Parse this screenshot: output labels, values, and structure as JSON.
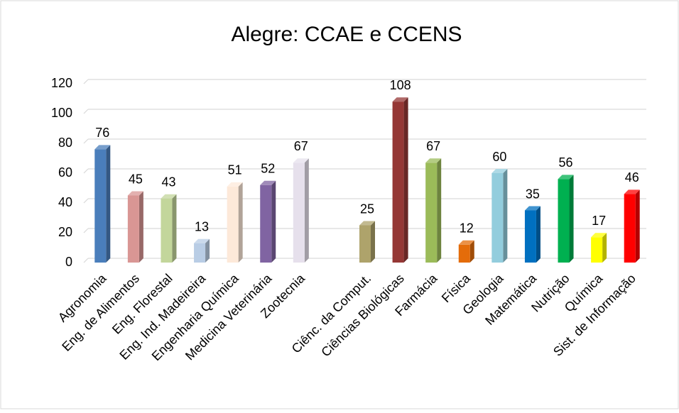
{
  "chart_data": {
    "type": "bar3d",
    "title": "Alegre: CCAE e CCENS",
    "categories": [
      "Agronomia",
      "Eng. de Alimentos",
      "Eng. Florestal",
      "Eng. Ind. Madeireira",
      "Engenharia Química",
      "Medicina Veterinária",
      "Zootecnia",
      null,
      "Ciênc. da Comput.",
      "Ciências Biológicas",
      "Farmácia",
      "Física",
      "Geologia",
      "Matemática",
      "Nutrição",
      "Química",
      "Sist. de Informação"
    ],
    "values": [
      76,
      45,
      43,
      13,
      51,
      52,
      67,
      null,
      25,
      108,
      67,
      12,
      60,
      35,
      56,
      17,
      46
    ],
    "colors": [
      "#4a7ebb",
      "#d99694",
      "#c3d69b",
      "#b9cde5",
      "#fde9d9",
      "#8064a2",
      "#e6e0ec",
      null,
      "#aea36b",
      "#953735",
      "#9bbb59",
      "#e46c0a",
      "#93cddd",
      "#0070c0",
      "#00b050",
      "#ffff00",
      "#ff0000"
    ],
    "ylim": [
      0,
      120
    ],
    "yticks": [
      0,
      20,
      40,
      60,
      80,
      100,
      120
    ],
    "grid": true
  }
}
